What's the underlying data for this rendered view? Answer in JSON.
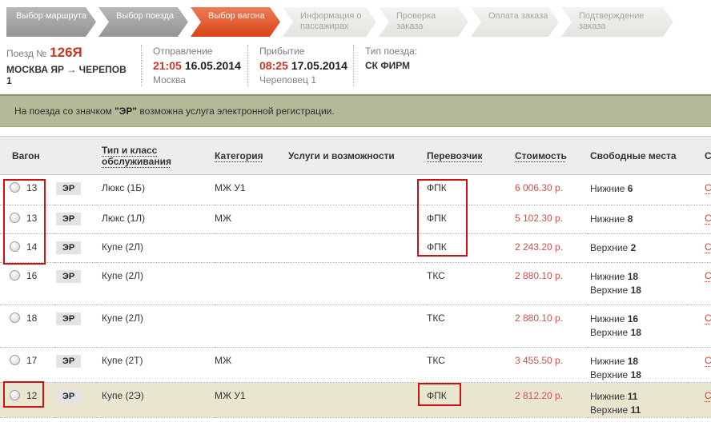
{
  "breadcrumb": {
    "steps": [
      {
        "label": "Выбор маршрута",
        "state": "past"
      },
      {
        "label": "Выбор поезда",
        "state": "past"
      },
      {
        "label": "Выбор вагона",
        "state": "active"
      },
      {
        "label": "Информация о пассажирах",
        "state": "future"
      },
      {
        "label": "Проверка заказа",
        "state": "future"
      },
      {
        "label": "Оплата заказа",
        "state": "future"
      },
      {
        "label": "Подтверждение заказа",
        "state": "future"
      }
    ]
  },
  "train_info": {
    "train_label": "Поезд №",
    "train_number": "126Я",
    "route": "МОСКВА ЯР → ЧЕРЕПОВ 1",
    "departure": {
      "label": "Отправление",
      "time": "21:05",
      "date": "16.05.2014",
      "station": "Москва"
    },
    "arrival": {
      "label": "Прибытие",
      "time": "08:25",
      "date": "17.05.2014",
      "station": "Череповец 1"
    },
    "train_type": {
      "label": "Тип поезда:",
      "value": "СК ФИРМ"
    }
  },
  "notice": {
    "text_before": "На поезда со значком ",
    "text_bold": "\"ЭР\"",
    "text_after": " возможна услуга электронной регистрации."
  },
  "table": {
    "headers": {
      "wagon": "Вагон",
      "type": "Тип и класс обслуживания",
      "category": "Категория",
      "services": "Услуги и возможности",
      "carrier": "Перевозчик",
      "price": "Стоимость",
      "seats": "Свободные места",
      "scheme": "С"
    },
    "rows": [
      {
        "wagon": "13",
        "er": "ЭР",
        "type": "Люкс (1Б)",
        "category": "МЖ У1",
        "services": "",
        "carrier": "ФПК",
        "price": "6 006.30 р.",
        "seats": [
          {
            "label": "Нижние",
            "count": "6"
          }
        ],
        "scheme": "С",
        "highlighted": false
      },
      {
        "wagon": "13",
        "er": "ЭР",
        "type": "Люкс (1Л)",
        "category": "МЖ",
        "services": "",
        "carrier": "ФПК",
        "price": "5 102.30 р.",
        "seats": [
          {
            "label": "Нижние",
            "count": "8"
          }
        ],
        "scheme": "С",
        "highlighted": false
      },
      {
        "wagon": "14",
        "er": "ЭР",
        "type": "Купе (2Л)",
        "category": "",
        "services": "",
        "carrier": "ФПК",
        "price": "2 243.20 р.",
        "seats": [
          {
            "label": "Верхние",
            "count": "2"
          }
        ],
        "scheme": "С",
        "highlighted": false
      },
      {
        "wagon": "16",
        "er": "ЭР",
        "type": "Купе (2Л)",
        "category": "",
        "services": "",
        "carrier": "ТКС",
        "price": "2 880.10 р.",
        "seats": [
          {
            "label": "Нижние",
            "count": "18"
          },
          {
            "label": "Верхние",
            "count": "18"
          }
        ],
        "scheme": "С",
        "highlighted": false
      },
      {
        "wagon": "18",
        "er": "ЭР",
        "type": "Купе (2Л)",
        "category": "",
        "services": "",
        "carrier": "ТКС",
        "price": "2 880.10 р.",
        "seats": [
          {
            "label": "Нижние",
            "count": "16"
          },
          {
            "label": "Верхние",
            "count": "18"
          }
        ],
        "scheme": "С",
        "highlighted": false
      },
      {
        "wagon": "17",
        "er": "ЭР",
        "type": "Купе (2Т)",
        "category": "МЖ",
        "services": "",
        "carrier": "ТКС",
        "price": "3 455.50 р.",
        "seats": [
          {
            "label": "Нижние",
            "count": "18"
          },
          {
            "label": "Верхние",
            "count": "18"
          }
        ],
        "scheme": "С",
        "highlighted": false
      },
      {
        "wagon": "12",
        "er": "ЭР",
        "type": "Купе (2Э)",
        "category": "МЖ У1",
        "services": "",
        "carrier": "ФПК",
        "price": "2 812.20 р.",
        "seats": [
          {
            "label": "Нижние",
            "count": "11"
          },
          {
            "label": "Верхние",
            "count": "11"
          }
        ],
        "scheme": "С",
        "highlighted": true
      }
    ]
  }
}
